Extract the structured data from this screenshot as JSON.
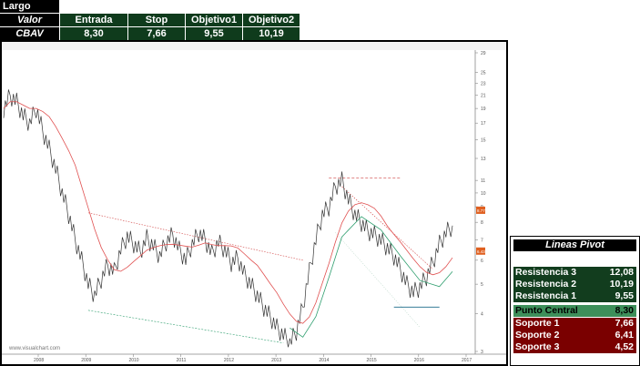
{
  "header": {
    "title": "Largo",
    "columns": [
      "Valor",
      "Entrada",
      "Stop",
      "Objetivo1",
      "Objetivo2"
    ],
    "row": [
      "CBAV",
      "8,30",
      "7,66",
      "9,55",
      "10,19"
    ]
  },
  "pivot": {
    "title": "Lineas Pivot",
    "rows": [
      {
        "label": "Resistencia 3",
        "value": "12,08",
        "kind": "res"
      },
      {
        "label": "Resistencia 2",
        "value": "10,19",
        "kind": "res"
      },
      {
        "label": "Resistencia 1",
        "value": "9,55",
        "kind": "res"
      },
      {
        "label": "Punto Central",
        "value": "8,30",
        "kind": "cen"
      },
      {
        "label": "Soporte 1",
        "value": "7,66",
        "kind": "sup"
      },
      {
        "label": "Soporte 2",
        "value": "6,41",
        "kind": "sup"
      },
      {
        "label": "Soporte 3",
        "value": "4,52",
        "kind": "sup"
      }
    ]
  },
  "chart_data": {
    "type": "line",
    "watermark": "www.visualchart.com",
    "x_ticks": [
      "2008",
      "2009",
      "2010",
      "2011",
      "2012",
      "2013",
      "2014",
      "2015",
      "2016",
      "2017"
    ],
    "y_ticks": [
      "29",
      "25",
      "23",
      "21",
      "19",
      "17",
      "15",
      "13",
      "11",
      "10",
      "9",
      "8",
      "7",
      "6",
      "5",
      "4",
      "3"
    ],
    "price_markers": [
      {
        "value": "8.77",
        "color": "#e06020"
      },
      {
        "value": "6.43",
        "color": "#e06020"
      }
    ],
    "colors": {
      "price": "#333333",
      "ma_red": "#e05050",
      "ma_green": "#2e9e6e",
      "dotted_red": "#d04040"
    },
    "series": [
      {
        "values": [
          19,
          21,
          20,
          18,
          17,
          19,
          16,
          14,
          12,
          10,
          8.5,
          7,
          6,
          5,
          4.6,
          5.2,
          5.8,
          5.5,
          6.5,
          7.2,
          6.8,
          6.4,
          7.1,
          6.7,
          6.2,
          6.9,
          7.3,
          6.5,
          6.0,
          6.8,
          7.4,
          7.0,
          6.3,
          6.9,
          6.5,
          5.9,
          6.1,
          5.4,
          5.0,
          4.6,
          4.2,
          3.9,
          3.6,
          3.4,
          3.2,
          3.5,
          4.2,
          5.5,
          7.0,
          8.5,
          9.0,
          10.5,
          11.0,
          9.5,
          8.5,
          8.0,
          7.5,
          7.3,
          7.0,
          6.6,
          6.2,
          5.6,
          5.0,
          4.7,
          4.9,
          5.3,
          5.9,
          6.8,
          7.4,
          7.8
        ]
      }
    ]
  }
}
